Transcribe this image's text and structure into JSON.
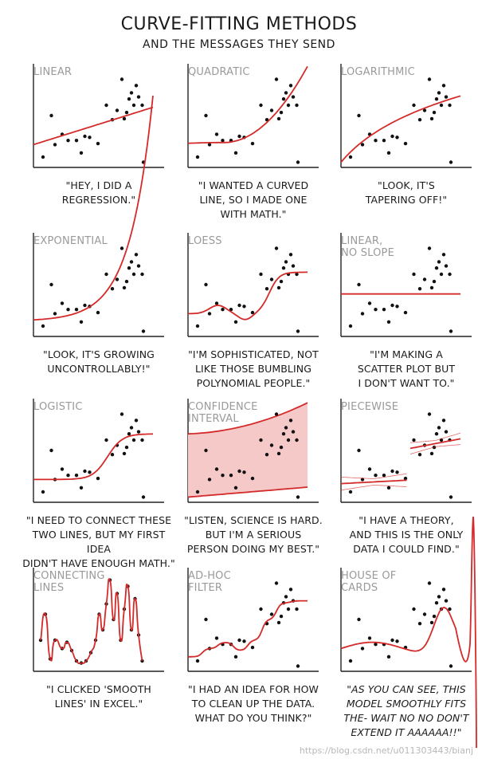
{
  "header": {
    "title": "CURVE-FITTING METHODS",
    "subtitle": "AND THE MESSAGES THEY SEND"
  },
  "colors": {
    "fit": "#d42a2a",
    "band": "#f6c9c9",
    "axis": "#222222",
    "dot": "#111111",
    "label": "#9a9a9a"
  },
  "watermark": "https://blog.csdn.net/u011303443/bianj",
  "chart_data": [
    {
      "type": "scatter",
      "method": "linear",
      "label": "LINEAR",
      "caption": "\"HEY, I DID A\nREGRESSION.\"",
      "points": [
        [
          0.08,
          0.1
        ],
        [
          0.15,
          0.5
        ],
        [
          0.18,
          0.22
        ],
        [
          0.24,
          0.32
        ],
        [
          0.29,
          0.26
        ],
        [
          0.36,
          0.26
        ],
        [
          0.4,
          0.14
        ],
        [
          0.43,
          0.3
        ],
        [
          0.47,
          0.29
        ],
        [
          0.54,
          0.23
        ],
        [
          0.61,
          0.6
        ],
        [
          0.66,
          0.46
        ],
        [
          0.7,
          0.55
        ],
        [
          0.74,
          0.85
        ],
        [
          0.76,
          0.47
        ],
        [
          0.78,
          0.53
        ],
        [
          0.8,
          0.66
        ],
        [
          0.82,
          0.72
        ],
        [
          0.84,
          0.6
        ],
        [
          0.86,
          0.79
        ],
        [
          0.88,
          0.68
        ],
        [
          0.91,
          0.6
        ],
        [
          0.92,
          0.05
        ]
      ],
      "fit": {
        "kind": "line",
        "params": [
          0.22,
          0.36
        ]
      }
    },
    {
      "type": "scatter",
      "method": "quadratic",
      "label": "QUADRATIC",
      "caption": "\"I WANTED A CURVED\nLINE, SO I MADE ONE\nWITH MATH.\"",
      "points": [
        [
          0.08,
          0.1
        ],
        [
          0.15,
          0.5
        ],
        [
          0.18,
          0.22
        ],
        [
          0.24,
          0.32
        ],
        [
          0.29,
          0.26
        ],
        [
          0.36,
          0.26
        ],
        [
          0.4,
          0.14
        ],
        [
          0.43,
          0.3
        ],
        [
          0.47,
          0.29
        ],
        [
          0.54,
          0.23
        ],
        [
          0.61,
          0.6
        ],
        [
          0.66,
          0.46
        ],
        [
          0.7,
          0.55
        ],
        [
          0.74,
          0.85
        ],
        [
          0.76,
          0.47
        ],
        [
          0.78,
          0.53
        ],
        [
          0.8,
          0.66
        ],
        [
          0.82,
          0.72
        ],
        [
          0.84,
          0.6
        ],
        [
          0.86,
          0.79
        ],
        [
          0.88,
          0.68
        ],
        [
          0.91,
          0.6
        ],
        [
          0.92,
          0.05
        ]
      ],
      "fit": {
        "kind": "quad",
        "params": [
          0.24,
          0.3,
          1.5
        ]
      }
    },
    {
      "type": "scatter",
      "method": "logarithmic",
      "label": "LOGARITHMIC",
      "caption": "\"LOOK, IT'S\nTAPERING OFF!\"",
      "points": [
        [
          0.08,
          0.1
        ],
        [
          0.15,
          0.5
        ],
        [
          0.18,
          0.22
        ],
        [
          0.24,
          0.32
        ],
        [
          0.29,
          0.26
        ],
        [
          0.36,
          0.26
        ],
        [
          0.4,
          0.14
        ],
        [
          0.43,
          0.3
        ],
        [
          0.47,
          0.29
        ],
        [
          0.54,
          0.23
        ],
        [
          0.61,
          0.6
        ],
        [
          0.66,
          0.46
        ],
        [
          0.7,
          0.55
        ],
        [
          0.74,
          0.85
        ],
        [
          0.76,
          0.47
        ],
        [
          0.78,
          0.53
        ],
        [
          0.8,
          0.66
        ],
        [
          0.82,
          0.72
        ],
        [
          0.84,
          0.6
        ],
        [
          0.86,
          0.79
        ],
        [
          0.88,
          0.68
        ],
        [
          0.91,
          0.6
        ],
        [
          0.92,
          0.05
        ]
      ],
      "fit": {
        "kind": "log",
        "params": [
          0.05,
          0.64,
          3
        ]
      }
    },
    {
      "type": "scatter",
      "method": "exponential",
      "label": "EXPONENTIAL",
      "caption": "\"LOOK, IT'S GROWING\nUNCONTROLLABLY!\"",
      "points": [
        [
          0.08,
          0.1
        ],
        [
          0.15,
          0.5
        ],
        [
          0.18,
          0.22
        ],
        [
          0.24,
          0.32
        ],
        [
          0.29,
          0.26
        ],
        [
          0.36,
          0.26
        ],
        [
          0.4,
          0.14
        ],
        [
          0.43,
          0.3
        ],
        [
          0.47,
          0.29
        ],
        [
          0.54,
          0.23
        ],
        [
          0.61,
          0.6
        ],
        [
          0.66,
          0.46
        ],
        [
          0.7,
          0.55
        ],
        [
          0.74,
          0.85
        ],
        [
          0.76,
          0.47
        ],
        [
          0.78,
          0.53
        ],
        [
          0.8,
          0.66
        ],
        [
          0.82,
          0.72
        ],
        [
          0.84,
          0.6
        ],
        [
          0.86,
          0.79
        ],
        [
          0.88,
          0.68
        ],
        [
          0.91,
          0.6
        ],
        [
          0.92,
          0.05
        ]
      ],
      "fit": {
        "kind": "exp",
        "params": [
          0.16,
          0.012,
          5.2
        ]
      }
    },
    {
      "type": "scatter",
      "method": "loess",
      "label": "LOESS",
      "caption": "\"I'M SOPHISTICATED, NOT\nLIKE THOSE BUMBLING\nPOLYNOMIAL PEOPLE.\"",
      "points": [
        [
          0.08,
          0.1
        ],
        [
          0.15,
          0.5
        ],
        [
          0.18,
          0.22
        ],
        [
          0.24,
          0.32
        ],
        [
          0.29,
          0.26
        ],
        [
          0.36,
          0.26
        ],
        [
          0.4,
          0.14
        ],
        [
          0.43,
          0.3
        ],
        [
          0.47,
          0.29
        ],
        [
          0.54,
          0.23
        ],
        [
          0.61,
          0.6
        ],
        [
          0.66,
          0.46
        ],
        [
          0.7,
          0.55
        ],
        [
          0.74,
          0.85
        ],
        [
          0.76,
          0.47
        ],
        [
          0.78,
          0.53
        ],
        [
          0.8,
          0.66
        ],
        [
          0.82,
          0.72
        ],
        [
          0.84,
          0.6
        ],
        [
          0.86,
          0.79
        ],
        [
          0.88,
          0.68
        ],
        [
          0.91,
          0.6
        ],
        [
          0.92,
          0.05
        ]
      ],
      "fit": {
        "kind": "loess",
        "params": []
      }
    },
    {
      "type": "scatter",
      "method": "linear-no-slope",
      "label": "LINEAR,\nNO SLOPE",
      "caption": "\"I'M MAKING A\nSCATTER PLOT BUT\nI DON'T WANT TO.\"",
      "points": [
        [
          0.08,
          0.1
        ],
        [
          0.15,
          0.5
        ],
        [
          0.18,
          0.22
        ],
        [
          0.24,
          0.32
        ],
        [
          0.29,
          0.26
        ],
        [
          0.36,
          0.26
        ],
        [
          0.4,
          0.14
        ],
        [
          0.43,
          0.3
        ],
        [
          0.47,
          0.29
        ],
        [
          0.54,
          0.23
        ],
        [
          0.61,
          0.6
        ],
        [
          0.66,
          0.46
        ],
        [
          0.7,
          0.55
        ],
        [
          0.74,
          0.85
        ],
        [
          0.76,
          0.47
        ],
        [
          0.78,
          0.53
        ],
        [
          0.8,
          0.66
        ],
        [
          0.82,
          0.72
        ],
        [
          0.84,
          0.6
        ],
        [
          0.86,
          0.79
        ],
        [
          0.88,
          0.68
        ],
        [
          0.91,
          0.6
        ],
        [
          0.92,
          0.05
        ]
      ],
      "fit": {
        "kind": "line",
        "params": [
          0.41,
          0.0
        ]
      }
    },
    {
      "type": "scatter",
      "method": "logistic",
      "label": "LOGISTIC",
      "caption": "\"I NEED TO CONNECT THESE\nTWO LINES, BUT MY FIRST IDEA\nDIDN'T HAVE ENOUGH MATH.\"",
      "points": [
        [
          0.08,
          0.1
        ],
        [
          0.15,
          0.5
        ],
        [
          0.18,
          0.22
        ],
        [
          0.24,
          0.32
        ],
        [
          0.29,
          0.26
        ],
        [
          0.36,
          0.26
        ],
        [
          0.4,
          0.14
        ],
        [
          0.43,
          0.3
        ],
        [
          0.47,
          0.29
        ],
        [
          0.54,
          0.23
        ],
        [
          0.61,
          0.6
        ],
        [
          0.66,
          0.46
        ],
        [
          0.7,
          0.55
        ],
        [
          0.74,
          0.85
        ],
        [
          0.76,
          0.47
        ],
        [
          0.78,
          0.53
        ],
        [
          0.8,
          0.66
        ],
        [
          0.82,
          0.72
        ],
        [
          0.84,
          0.6
        ],
        [
          0.86,
          0.79
        ],
        [
          0.88,
          0.68
        ],
        [
          0.91,
          0.6
        ],
        [
          0.92,
          0.05
        ]
      ],
      "fit": {
        "kind": "logistic",
        "params": [
          0.22,
          0.44,
          0.62,
          16
        ]
      }
    },
    {
      "type": "scatter",
      "method": "confidence-interval",
      "label": "CONFIDENCE\nINTERVAL",
      "caption": "\"LISTEN, SCIENCE IS HARD.\nBUT I'M A SERIOUS\nPERSON DOING MY BEST.\"",
      "points": [
        [
          0.08,
          0.1
        ],
        [
          0.15,
          0.5
        ],
        [
          0.18,
          0.22
        ],
        [
          0.24,
          0.32
        ],
        [
          0.29,
          0.26
        ],
        [
          0.36,
          0.26
        ],
        [
          0.4,
          0.14
        ],
        [
          0.43,
          0.3
        ],
        [
          0.47,
          0.29
        ],
        [
          0.54,
          0.23
        ],
        [
          0.61,
          0.6
        ],
        [
          0.66,
          0.46
        ],
        [
          0.7,
          0.55
        ],
        [
          0.74,
          0.85
        ],
        [
          0.76,
          0.47
        ],
        [
          0.78,
          0.53
        ],
        [
          0.8,
          0.66
        ],
        [
          0.82,
          0.72
        ],
        [
          0.84,
          0.6
        ],
        [
          0.86,
          0.79
        ],
        [
          0.88,
          0.68
        ],
        [
          0.91,
          0.6
        ],
        [
          0.92,
          0.05
        ]
      ],
      "fit": {
        "kind": "band",
        "params": [
          0.66,
          0.04,
          0.24,
          0.05
        ]
      }
    },
    {
      "type": "scatter",
      "method": "piecewise",
      "label": "PIECEWISE",
      "caption": "\"I HAVE A THEORY,\nAND THIS IS THE ONLY\nDATA I COULD FIND.\"",
      "points": [
        [
          0.08,
          0.1
        ],
        [
          0.15,
          0.5
        ],
        [
          0.18,
          0.22
        ],
        [
          0.24,
          0.32
        ],
        [
          0.29,
          0.26
        ],
        [
          0.36,
          0.26
        ],
        [
          0.4,
          0.14
        ],
        [
          0.43,
          0.3
        ],
        [
          0.47,
          0.29
        ],
        [
          0.54,
          0.23
        ],
        [
          0.61,
          0.6
        ],
        [
          0.66,
          0.46
        ],
        [
          0.7,
          0.55
        ],
        [
          0.74,
          0.85
        ],
        [
          0.76,
          0.47
        ],
        [
          0.78,
          0.53
        ],
        [
          0.8,
          0.66
        ],
        [
          0.82,
          0.72
        ],
        [
          0.84,
          0.6
        ],
        [
          0.86,
          0.79
        ],
        [
          0.88,
          0.68
        ],
        [
          0.91,
          0.6
        ],
        [
          0.92,
          0.05
        ]
      ],
      "fit": {
        "kind": "piecewise",
        "params": []
      }
    },
    {
      "type": "line",
      "method": "connecting-lines",
      "label": "CONNECTING\nLINES",
      "caption": "\"I CLICKED 'SMOOTH\nLINES' IN EXCEL.\"",
      "points": [
        [
          0.06,
          0.3
        ],
        [
          0.1,
          0.55
        ],
        [
          0.14,
          0.12
        ],
        [
          0.18,
          0.3
        ],
        [
          0.24,
          0.22
        ],
        [
          0.28,
          0.28
        ],
        [
          0.32,
          0.2
        ],
        [
          0.36,
          0.1
        ],
        [
          0.4,
          0.08
        ],
        [
          0.44,
          0.1
        ],
        [
          0.48,
          0.18
        ],
        [
          0.52,
          0.3
        ],
        [
          0.55,
          0.55
        ],
        [
          0.58,
          0.4
        ],
        [
          0.61,
          0.65
        ],
        [
          0.64,
          0.88
        ],
        [
          0.67,
          0.5
        ],
        [
          0.7,
          0.75
        ],
        [
          0.73,
          0.3
        ],
        [
          0.76,
          0.6
        ],
        [
          0.79,
          0.82
        ],
        [
          0.82,
          0.4
        ],
        [
          0.85,
          0.7
        ],
        [
          0.88,
          0.35
        ],
        [
          0.91,
          0.1
        ]
      ],
      "fit": {
        "kind": "connect",
        "params": []
      }
    },
    {
      "type": "scatter",
      "method": "ad-hoc-filter",
      "label": "AD-HOC\nFILTER",
      "caption": "\"I HAD AN IDEA FOR HOW\nTO CLEAN UP THE DATA.\nWHAT DO YOU THINK?\"",
      "points": [
        [
          0.08,
          0.1
        ],
        [
          0.15,
          0.5
        ],
        [
          0.18,
          0.22
        ],
        [
          0.24,
          0.32
        ],
        [
          0.29,
          0.26
        ],
        [
          0.36,
          0.26
        ],
        [
          0.4,
          0.14
        ],
        [
          0.43,
          0.3
        ],
        [
          0.47,
          0.29
        ],
        [
          0.54,
          0.23
        ],
        [
          0.61,
          0.6
        ],
        [
          0.66,
          0.46
        ],
        [
          0.7,
          0.55
        ],
        [
          0.74,
          0.85
        ],
        [
          0.76,
          0.47
        ],
        [
          0.78,
          0.53
        ],
        [
          0.8,
          0.66
        ],
        [
          0.82,
          0.72
        ],
        [
          0.84,
          0.6
        ],
        [
          0.86,
          0.79
        ],
        [
          0.88,
          0.68
        ],
        [
          0.91,
          0.6
        ],
        [
          0.92,
          0.05
        ]
      ],
      "fit": {
        "kind": "steps",
        "params": []
      }
    },
    {
      "type": "scatter",
      "method": "house-of-cards",
      "label": "HOUSE OF\nCARDS",
      "caption": "\"AS YOU CAN SEE, THIS\nMODEL SMOOTHLY FITS\nTHE- WAIT NO NO DON'T\nEXTEND IT AAAAAA!!\"",
      "points": [
        [
          0.08,
          0.1
        ],
        [
          0.15,
          0.5
        ],
        [
          0.18,
          0.22
        ],
        [
          0.24,
          0.32
        ],
        [
          0.29,
          0.26
        ],
        [
          0.36,
          0.26
        ],
        [
          0.4,
          0.14
        ],
        [
          0.43,
          0.3
        ],
        [
          0.47,
          0.29
        ],
        [
          0.54,
          0.23
        ],
        [
          0.61,
          0.6
        ],
        [
          0.66,
          0.46
        ],
        [
          0.7,
          0.55
        ],
        [
          0.74,
          0.85
        ],
        [
          0.76,
          0.47
        ],
        [
          0.78,
          0.53
        ],
        [
          0.8,
          0.66
        ],
        [
          0.82,
          0.72
        ],
        [
          0.84,
          0.6
        ],
        [
          0.86,
          0.79
        ],
        [
          0.88,
          0.68
        ],
        [
          0.91,
          0.6
        ],
        [
          0.92,
          0.05
        ]
      ],
      "fit": {
        "kind": "house",
        "params": []
      }
    }
  ]
}
